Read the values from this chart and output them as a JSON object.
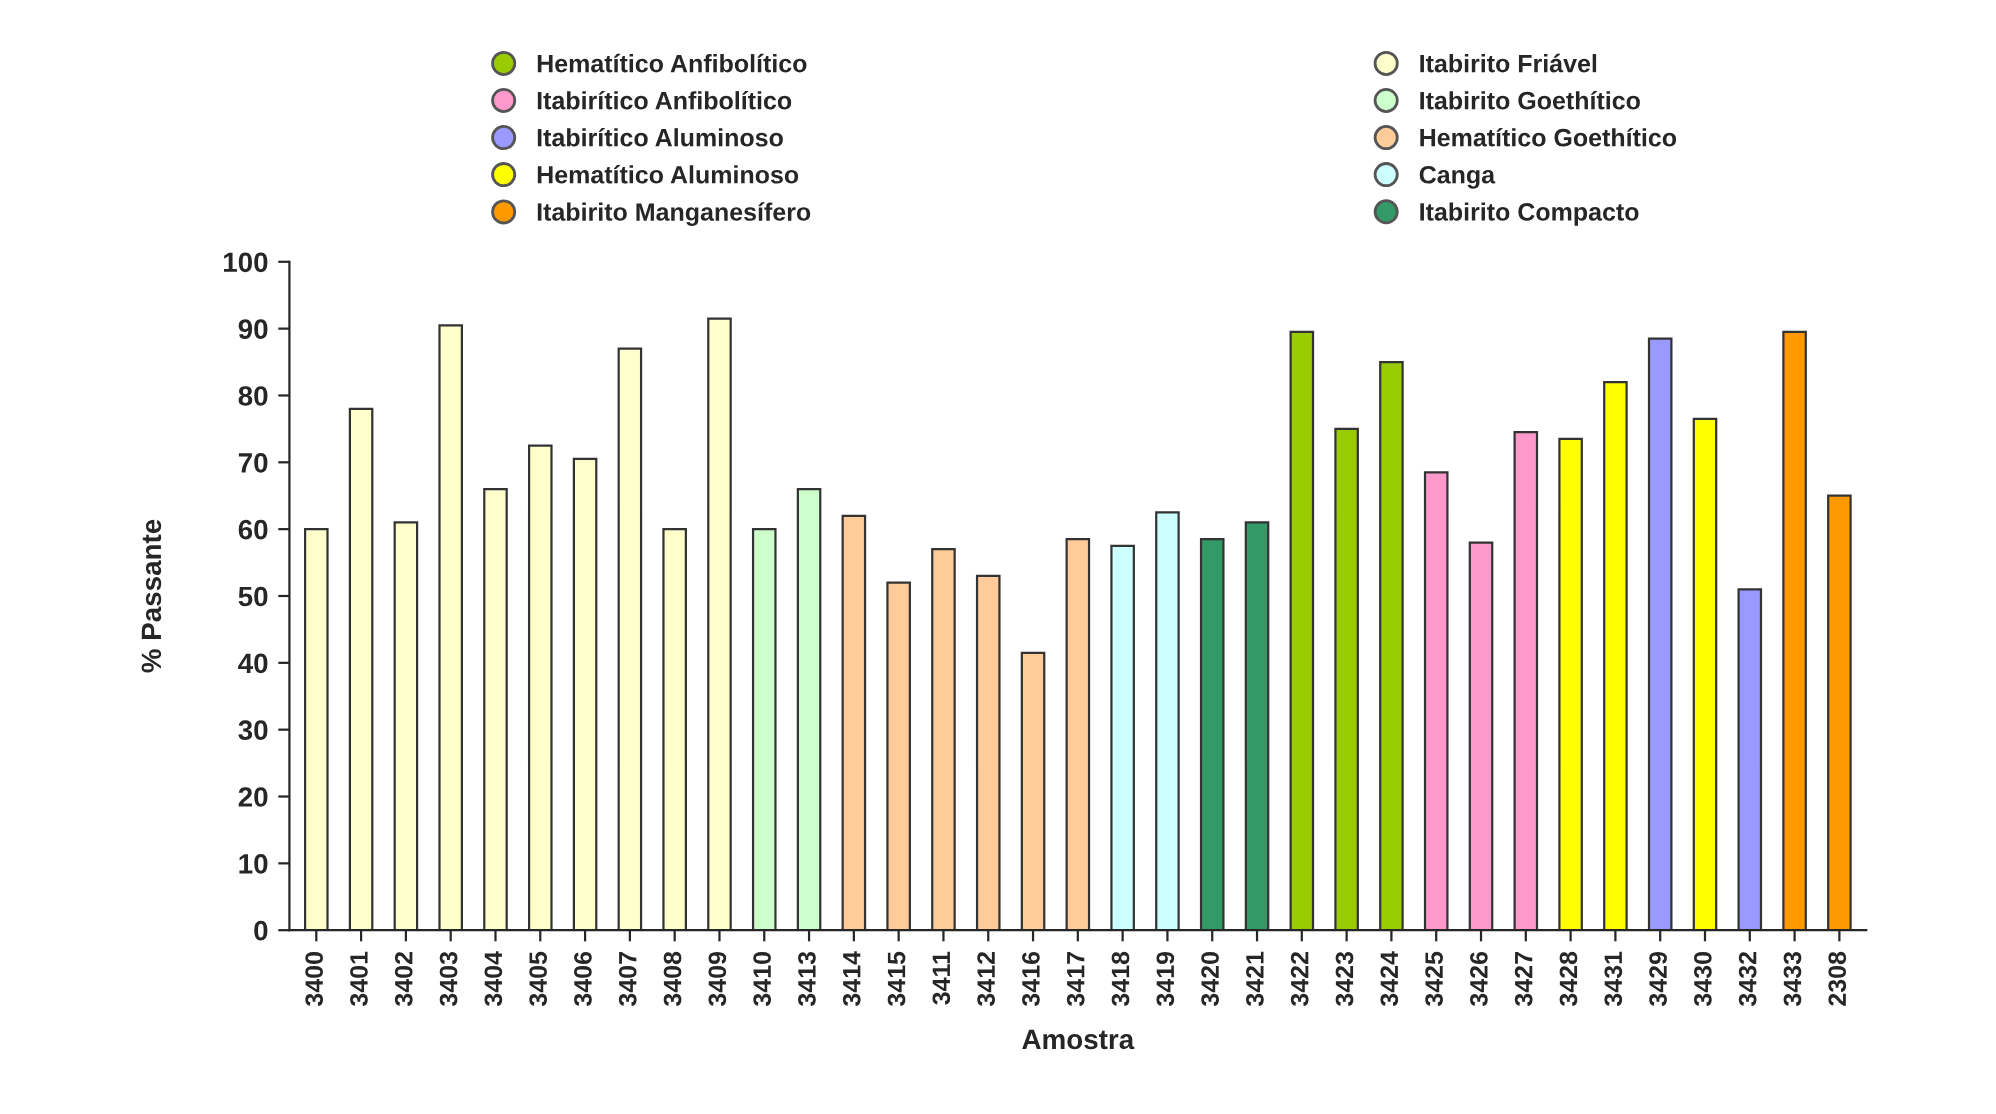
{
  "chart_data": {
    "type": "bar",
    "xlabel": "Amostra",
    "ylabel": "% Passante",
    "categories": [
      "3400",
      "3401",
      "3402",
      "3403",
      "3404",
      "3405",
      "3406",
      "3407",
      "3408",
      "3409",
      "3410",
      "3413",
      "3414",
      "3415",
      "3411",
      "3412",
      "3416",
      "3417",
      "3418",
      "3419",
      "3420",
      "3421",
      "3422",
      "3423",
      "3424",
      "3425",
      "3426",
      "3427",
      "3428",
      "3431",
      "3429",
      "3430",
      "3432",
      "3433",
      "2308"
    ],
    "series": [
      {
        "name": "Hematítico Anfibolítico",
        "color": "#99cc00",
        "values": [
          null,
          null,
          null,
          null,
          null,
          null,
          null,
          null,
          null,
          null,
          null,
          null,
          null,
          null,
          null,
          null,
          null,
          null,
          null,
          null,
          null,
          null,
          89.5,
          75,
          85,
          null,
          null,
          null,
          null,
          null,
          null,
          null,
          null,
          null,
          null
        ]
      },
      {
        "name": "Itabirítico Anfibolítico",
        "color": "#ff99cc",
        "values": [
          null,
          null,
          null,
          null,
          null,
          null,
          null,
          null,
          null,
          null,
          null,
          null,
          null,
          null,
          null,
          null,
          null,
          null,
          null,
          null,
          null,
          null,
          null,
          null,
          null,
          68.5,
          58,
          74.5,
          null,
          null,
          null,
          null,
          null,
          null,
          null
        ]
      },
      {
        "name": "Itabirítico Aluminoso",
        "color": "#9999ff",
        "values": [
          null,
          null,
          null,
          null,
          null,
          null,
          null,
          null,
          null,
          null,
          null,
          null,
          null,
          null,
          null,
          null,
          null,
          null,
          null,
          null,
          null,
          null,
          null,
          null,
          null,
          null,
          null,
          null,
          null,
          null,
          88.5,
          null,
          51,
          null,
          null
        ]
      },
      {
        "name": "Hematítico Aluminoso",
        "color": "#ffff00",
        "values": [
          null,
          null,
          null,
          null,
          null,
          null,
          null,
          null,
          null,
          null,
          null,
          null,
          null,
          null,
          null,
          null,
          null,
          null,
          null,
          null,
          null,
          null,
          null,
          null,
          null,
          null,
          null,
          null,
          73.5,
          82,
          null,
          76.5,
          null,
          null,
          null
        ]
      },
      {
        "name": "Itabirito Manganesífero",
        "color": "#ff9900",
        "values": [
          null,
          null,
          null,
          null,
          null,
          null,
          null,
          null,
          null,
          null,
          null,
          null,
          null,
          null,
          null,
          null,
          null,
          null,
          null,
          null,
          null,
          null,
          null,
          null,
          null,
          null,
          null,
          null,
          null,
          null,
          null,
          null,
          null,
          89.5,
          65
        ]
      },
      {
        "name": "Itabirito Friável",
        "color": "#ffffcc",
        "values": [
          60,
          78,
          61,
          90.5,
          66,
          72.5,
          70.5,
          87,
          60,
          91.5,
          null,
          null,
          null,
          null,
          null,
          null,
          null,
          null,
          null,
          null,
          null,
          null,
          null,
          null,
          null,
          null,
          null,
          null,
          null,
          null,
          null,
          null,
          null,
          null,
          null
        ]
      },
      {
        "name": "Itabirito Goethítico",
        "color": "#ccffcc",
        "values": [
          null,
          null,
          null,
          null,
          null,
          null,
          null,
          null,
          null,
          null,
          60,
          66,
          null,
          null,
          null,
          null,
          null,
          null,
          null,
          null,
          null,
          null,
          null,
          null,
          null,
          null,
          null,
          null,
          null,
          null,
          null,
          null,
          null,
          null,
          null
        ]
      },
      {
        "name": "Hematítico Goethítico",
        "color": "#ffcc99",
        "values": [
          null,
          null,
          null,
          null,
          null,
          null,
          null,
          null,
          null,
          null,
          null,
          null,
          62,
          52,
          57,
          53,
          41.5,
          58.5,
          null,
          null,
          null,
          null,
          null,
          null,
          null,
          null,
          null,
          null,
          null,
          null,
          null,
          null,
          null,
          null,
          null
        ]
      },
      {
        "name": "Canga",
        "color": "#ccffff",
        "values": [
          null,
          null,
          null,
          null,
          null,
          null,
          null,
          null,
          null,
          null,
          null,
          null,
          null,
          null,
          null,
          null,
          null,
          null,
          57.5,
          62.5,
          null,
          null,
          null,
          null,
          null,
          null,
          null,
          null,
          null,
          null,
          null,
          null,
          null,
          null,
          null
        ]
      },
      {
        "name": "Itabirito Compacto",
        "color": "#339966",
        "values": [
          null,
          null,
          null,
          null,
          null,
          null,
          null,
          null,
          null,
          null,
          null,
          null,
          null,
          null,
          null,
          null,
          null,
          null,
          null,
          null,
          58.5,
          61,
          null,
          null,
          null,
          null,
          null,
          null,
          null,
          null,
          null,
          null,
          null,
          null,
          null
        ]
      }
    ],
    "ylim": [
      0,
      100
    ],
    "yticks": [
      0,
      10,
      20,
      30,
      40,
      50,
      60,
      70,
      80,
      90,
      100
    ],
    "grid": false,
    "legend": "top"
  }
}
